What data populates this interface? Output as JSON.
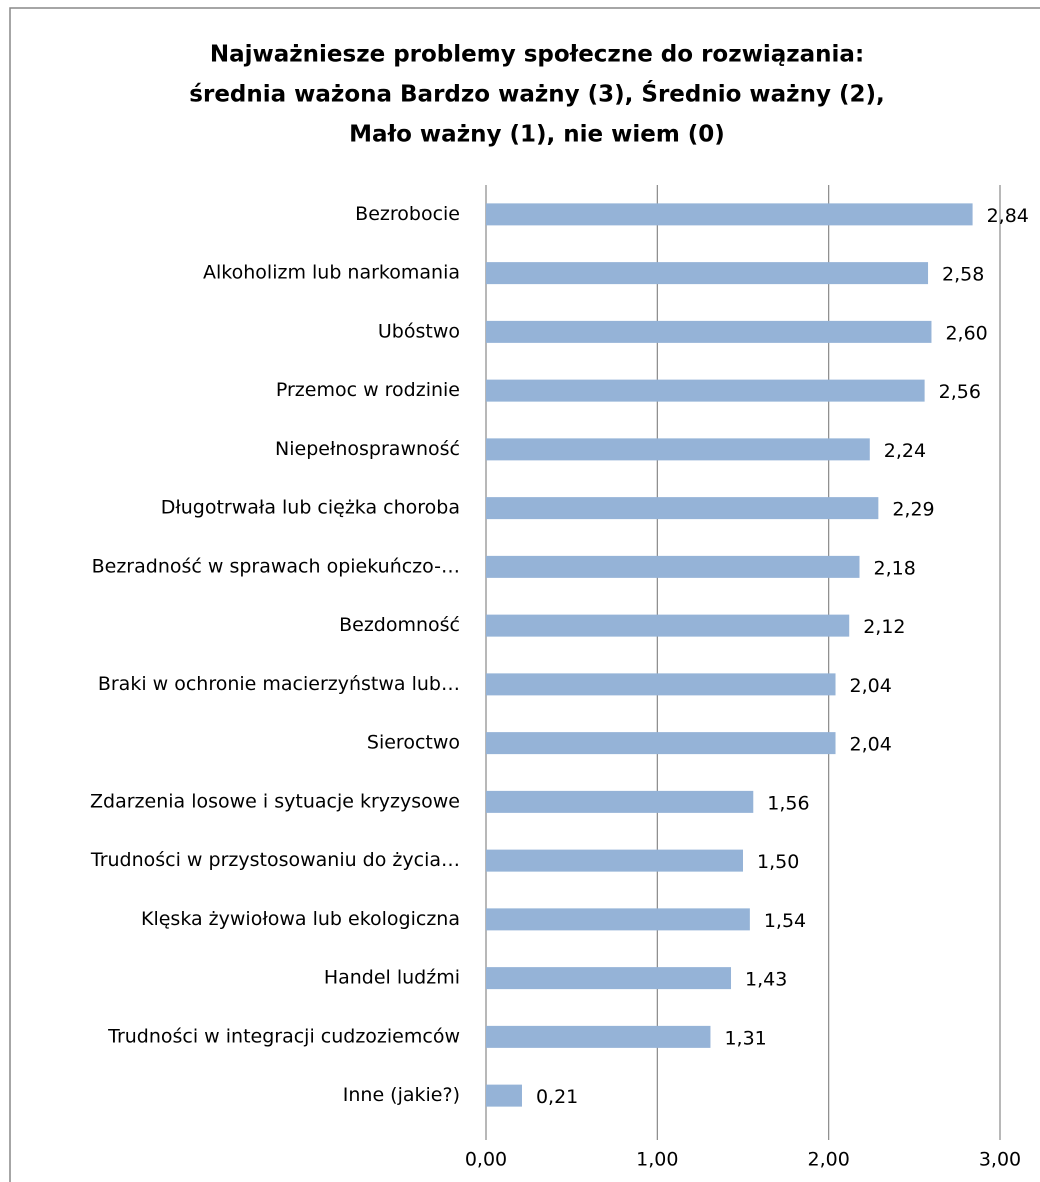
{
  "chart_data": {
    "type": "bar",
    "orientation": "horizontal",
    "title": [
      "Najważniesze problemy społeczne do rozwiązania:",
      "średnia ważona Bardzo ważny (3), Średnio ważny (2),",
      "Mało ważny (1), nie wiem (0)"
    ],
    "categories": [
      "Bezrobocie",
      "Alkoholizm lub narkomania",
      "Ubóstwo",
      "Przemoc w rodzinie",
      "Niepełnosprawność",
      "Długotrwała lub ciężka choroba",
      "Bezradność w sprawach opiekuńczo-…",
      "Bezdomność",
      "Braki w ochronie macierzyństwa lub…",
      "Sieroctwo",
      "Zdarzenia losowe i sytuacje kryzysowe",
      "Trudności w przystosowaniu do życia…",
      "Klęska żywiołowa lub ekologiczna",
      "Handel ludźmi",
      "Trudności w integracji cudzoziemców",
      "Inne (jakie?)"
    ],
    "values": [
      2.84,
      2.58,
      2.6,
      2.56,
      2.24,
      2.29,
      2.18,
      2.12,
      2.04,
      2.04,
      1.56,
      1.5,
      1.54,
      1.43,
      1.31,
      0.21
    ],
    "value_labels": [
      "2,84",
      "2,58",
      "2,60",
      "2,56",
      "2,24",
      "2,29",
      "2,18",
      "2,12",
      "2,04",
      "2,04",
      "1,56",
      "1,50",
      "1,54",
      "1,43",
      "1,31",
      "0,21"
    ],
    "color": "#95b3d7",
    "xlim": [
      0,
      3
    ],
    "xticks": [
      {
        "value": 0,
        "label": "0,00"
      },
      {
        "value": 1,
        "label": "1,00"
      },
      {
        "value": 2,
        "label": "2,00"
      },
      {
        "value": 3,
        "label": "3,00"
      }
    ],
    "grid": true
  }
}
